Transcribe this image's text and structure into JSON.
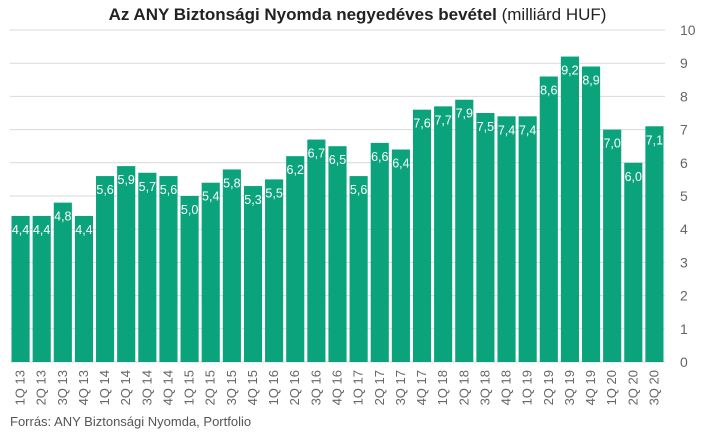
{
  "title": {
    "main": "Az ANY Biztonsági Nyomda negyedéves bevétel",
    "unit": "(milliárd HUF)"
  },
  "source": "Forrás: ANY Biztonsági Nyomda, Portfolio",
  "colors": {
    "bar": "#0aa37c",
    "grid": "#d9d9d9",
    "value_label": "#ffffff",
    "axis_text": "#666666"
  },
  "chart_data": {
    "type": "bar",
    "title": "Az ANY Biztonsági Nyomda negyedéves bevétel (milliárd HUF)",
    "categories": [
      "1Q 13",
      "2Q 13",
      "3Q 13",
      "4Q 13",
      "1Q 14",
      "2Q 14",
      "3Q 14",
      "4Q 14",
      "1Q 15",
      "2Q 15",
      "3Q 15",
      "4Q 15",
      "1Q 16",
      "2Q 16",
      "3Q 16",
      "4Q 16",
      "1Q 17",
      "2Q 17",
      "3Q 17",
      "4Q 17",
      "1Q 18",
      "2Q 18",
      "3Q 18",
      "4Q 18",
      "1Q 19",
      "2Q 19",
      "3Q 19",
      "4Q 19",
      "1Q 20",
      "2Q 20",
      "3Q 20"
    ],
    "values": [
      4.4,
      4.4,
      4.8,
      4.4,
      5.6,
      5.9,
      5.7,
      5.6,
      5.0,
      5.4,
      5.8,
      5.3,
      5.5,
      6.2,
      6.7,
      6.5,
      5.6,
      6.6,
      6.4,
      7.6,
      7.7,
      7.9,
      7.5,
      7.4,
      7.4,
      8.6,
      9.2,
      8.9,
      7.0,
      6.0,
      7.1
    ],
    "value_labels": [
      "4,4",
      "4,4",
      "4,8",
      "4,4",
      "5,6",
      "5,9",
      "5,7",
      "5,6",
      "5,0",
      "5,4",
      "5,8",
      "5,3",
      "5,5",
      "6,2",
      "6,7",
      "6,5",
      "5,6",
      "6,6",
      "6,4",
      "7,6",
      "7,7",
      "7,9",
      "7,5",
      "7,4",
      "7,4",
      "8,6",
      "9,2",
      "8,9",
      "7,0",
      "6,0",
      "7,1"
    ],
    "ylim": [
      0,
      10
    ],
    "yticks": [
      0,
      1,
      2,
      3,
      4,
      5,
      6,
      7,
      8,
      9,
      10
    ],
    "y_axis_side": "right",
    "grid": true,
    "legend": "none",
    "xlabel": "",
    "ylabel": ""
  }
}
